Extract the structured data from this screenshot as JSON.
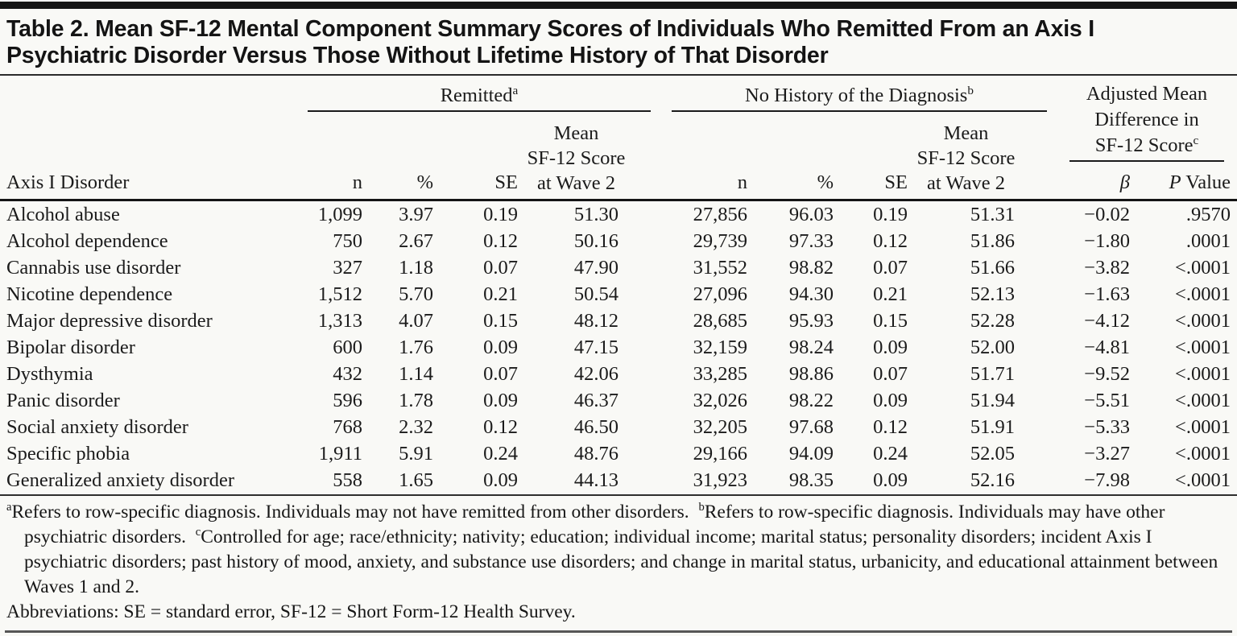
{
  "title": {
    "line1": "Table 2. Mean SF-12 Mental Component Summary Scores of Individuals Who Remitted From an Axis I",
    "line2": "Psychiatric Disorder Versus Those Without Lifetime History of That Disorder"
  },
  "header": {
    "row_label": "Axis I Disorder",
    "groups": {
      "remitted_label": "Remitted",
      "remitted_sup": "a",
      "no_history_label": "No History of the Diagnosis",
      "no_history_sup": "b",
      "adjusted_label": "Adjusted Mean\nDifference in\nSF-12 Score",
      "adjusted_sup": "c"
    },
    "sub": {
      "n": "n",
      "pct": "%",
      "se": "SE",
      "mean": "Mean\nSF-12 Score\nat Wave 2",
      "beta": "β",
      "p_italic": "P",
      "p_rest": " Value"
    }
  },
  "table": {
    "rows": [
      {
        "disorder": "Alcohol abuse",
        "r_n": "1,099",
        "r_pct": "3.97",
        "r_se": "0.19",
        "r_mean": "51.30",
        "nh_n": "27,856",
        "nh_pct": "96.03",
        "nh_se": "0.19",
        "nh_mean": "51.31",
        "beta": "−0.02",
        "p": ".9570"
      },
      {
        "disorder": "Alcohol dependence",
        "r_n": "750",
        "r_pct": "2.67",
        "r_se": "0.12",
        "r_mean": "50.16",
        "nh_n": "29,739",
        "nh_pct": "97.33",
        "nh_se": "0.12",
        "nh_mean": "51.86",
        "beta": "−1.80",
        "p": ".0001"
      },
      {
        "disorder": "Cannabis use disorder",
        "r_n": "327",
        "r_pct": "1.18",
        "r_se": "0.07",
        "r_mean": "47.90",
        "nh_n": "31,552",
        "nh_pct": "98.82",
        "nh_se": "0.07",
        "nh_mean": "51.66",
        "beta": "−3.82",
        "p": "<.0001"
      },
      {
        "disorder": "Nicotine dependence",
        "r_n": "1,512",
        "r_pct": "5.70",
        "r_se": "0.21",
        "r_mean": "50.54",
        "nh_n": "27,096",
        "nh_pct": "94.30",
        "nh_se": "0.21",
        "nh_mean": "52.13",
        "beta": "−1.63",
        "p": "<.0001"
      },
      {
        "disorder": "Major depressive disorder",
        "r_n": "1,313",
        "r_pct": "4.07",
        "r_se": "0.15",
        "r_mean": "48.12",
        "nh_n": "28,685",
        "nh_pct": "95.93",
        "nh_se": "0.15",
        "nh_mean": "52.28",
        "beta": "−4.12",
        "p": "<.0001"
      },
      {
        "disorder": "Bipolar disorder",
        "r_n": "600",
        "r_pct": "1.76",
        "r_se": "0.09",
        "r_mean": "47.15",
        "nh_n": "32,159",
        "nh_pct": "98.24",
        "nh_se": "0.09",
        "nh_mean": "52.00",
        "beta": "−4.81",
        "p": "<.0001"
      },
      {
        "disorder": "Dysthymia",
        "r_n": "432",
        "r_pct": "1.14",
        "r_se": "0.07",
        "r_mean": "42.06",
        "nh_n": "33,285",
        "nh_pct": "98.86",
        "nh_se": "0.07",
        "nh_mean": "51.71",
        "beta": "−9.52",
        "p": "<.0001"
      },
      {
        "disorder": "Panic disorder",
        "r_n": "596",
        "r_pct": "1.78",
        "r_se": "0.09",
        "r_mean": "46.37",
        "nh_n": "32,026",
        "nh_pct": "98.22",
        "nh_se": "0.09",
        "nh_mean": "51.94",
        "beta": "−5.51",
        "p": "<.0001"
      },
      {
        "disorder": "Social anxiety disorder",
        "r_n": "768",
        "r_pct": "2.32",
        "r_se": "0.12",
        "r_mean": "46.50",
        "nh_n": "32,205",
        "nh_pct": "97.68",
        "nh_se": "0.12",
        "nh_mean": "51.91",
        "beta": "−5.33",
        "p": "<.0001"
      },
      {
        "disorder": "Specific phobia",
        "r_n": "1,911",
        "r_pct": "5.91",
        "r_se": "0.24",
        "r_mean": "48.76",
        "nh_n": "29,166",
        "nh_pct": "94.09",
        "nh_se": "0.24",
        "nh_mean": "52.05",
        "beta": "−3.27",
        "p": "<.0001"
      },
      {
        "disorder": "Generalized anxiety disorder",
        "r_n": "558",
        "r_pct": "1.65",
        "r_se": "0.09",
        "r_mean": "44.13",
        "nh_n": "31,923",
        "nh_pct": "98.35",
        "nh_se": "0.09",
        "nh_mean": "52.16",
        "beta": "−7.98",
        "p": "<.0001"
      }
    ]
  },
  "footnotes": {
    "a_sup": "a",
    "a_text": "Refers to row-specific diagnosis. Individuals may not have remitted from other disorders. ",
    "b_sup": "b",
    "b_text": "Refers to row-specific diagnosis. Individuals may have other psychiatric disorders. ",
    "c_sup": "c",
    "c_text": "Controlled for age; race/ethnicity; nativity; education; individual income; marital status; personality disorders; incident Axis I psychiatric disorders; past history of mood, anxiety, and substance use disorders; and change in marital status, urbanicity, and educational attainment between Waves 1 and 2.",
    "abbreviations": "Abbreviations: SE = standard error, SF-12 = Short Form-12 Health Survey."
  },
  "colors": {
    "background": "#f9f9f6",
    "text": "#1b1b1b",
    "top_bar": "#161616",
    "rules": "#2a2a2a",
    "bottom_rule": "#565656"
  }
}
